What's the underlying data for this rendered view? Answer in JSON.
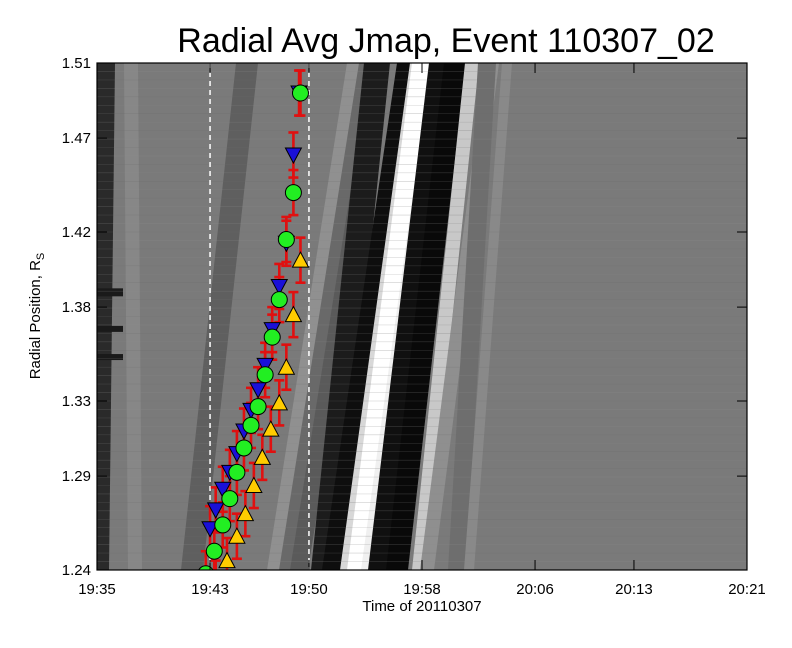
{
  "chart_data": {
    "type": "scatter",
    "title": "Radial Avg Jmap, Event 110307_02",
    "xlabel": "Time of 20110307",
    "ylabel_main": "Radial Position, R",
    "ylabel_sub": "S",
    "x_ticks": [
      "19:35",
      "19:43",
      "19:50",
      "19:58",
      "20:06",
      "20:13",
      "20:21"
    ],
    "y_ticks": [
      "1.24",
      "1.29",
      "1.33",
      "1.38",
      "1.42",
      "1.47",
      "1.51"
    ],
    "xlim": [
      "19:35",
      "20:21"
    ],
    "ylim": [
      1.24,
      1.51
    ],
    "background": "grayscale radial time-distance map (Jmap)",
    "vertical_markers": [
      "19:43",
      "19:50"
    ],
    "series": [
      {
        "marker": "down-triangle",
        "color": "#1a10d8",
        "x": [
          "19:43.0",
          "19:43.4",
          "19:43.9",
          "19:44.4",
          "19:44.9",
          "19:45.4",
          "19:45.9",
          "19:46.4",
          "19:46.9",
          "19:47.4",
          "19:47.9",
          "19:48.4",
          "19:48.9",
          "19:49.3"
        ],
        "y": [
          1.262,
          1.272,
          1.283,
          1.292,
          1.302,
          1.314,
          1.325,
          1.336,
          1.349,
          1.368,
          1.391,
          1.414,
          1.461,
          1.494
        ]
      },
      {
        "marker": "circle",
        "color": "#22ee22",
        "x": [
          "19:42.7",
          "19:43.3",
          "19:43.9",
          "19:44.4",
          "19:44.9",
          "19:45.4",
          "19:45.9",
          "19:46.4",
          "19:46.9",
          "19:47.4",
          "19:47.9",
          "19:48.4",
          "19:48.9",
          "19:49.4"
        ],
        "y": [
          1.238,
          1.25,
          1.264,
          1.278,
          1.292,
          1.305,
          1.317,
          1.327,
          1.344,
          1.364,
          1.384,
          1.416,
          1.441,
          1.494
        ]
      },
      {
        "marker": "up-triangle",
        "color": "#ffcc00",
        "x": [
          "19:43.4",
          "19:44.2",
          "19:44.9",
          "19:45.5",
          "19:46.1",
          "19:46.7",
          "19:47.3",
          "19:47.9",
          "19:48.4",
          "19:48.9",
          "19:49.4"
        ],
        "y": [
          1.233,
          1.245,
          1.258,
          1.27,
          1.285,
          1.3,
          1.315,
          1.329,
          1.348,
          1.376,
          1.405
        ]
      }
    ]
  }
}
